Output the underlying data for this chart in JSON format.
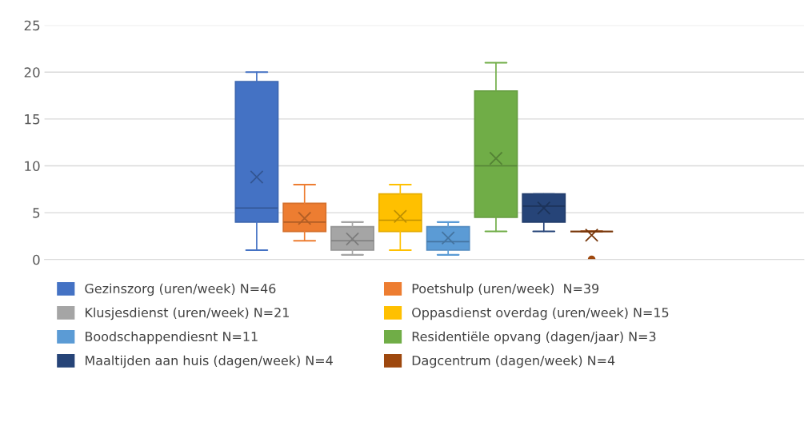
{
  "chart_data": {
    "type": "box",
    "categories": [
      null
    ],
    "ylim": [
      0,
      25
    ],
    "yticks": [
      0,
      5,
      10,
      15,
      20,
      25
    ],
    "grid": "y",
    "legend": "bottom",
    "series": [
      {
        "name": "Gezinszorg (uren/week) N=46",
        "color": "#4472c4",
        "boxes": [
          {
            "low": 1,
            "q1": 4,
            "median": 5.5,
            "q3": 19,
            "high": 20,
            "mean": 8.8
          }
        ]
      },
      {
        "name": "Poetshulp (uren/week)  N=39",
        "color": "#ed7d31",
        "boxes": [
          {
            "low": 2,
            "q1": 3,
            "median": 4,
            "q3": 6,
            "high": 8,
            "mean": 4.4
          }
        ]
      },
      {
        "name": "Klusjesdienst (uren/week) N=21",
        "color": "#a5a5a5",
        "boxes": [
          {
            "low": 0.5,
            "q1": 1,
            "median": 2,
            "q3": 3.5,
            "high": 4,
            "mean": 2.2
          }
        ]
      },
      {
        "name": "Oppasdienst overdag (uren/week) N=15",
        "color": "#ffc000",
        "boxes": [
          {
            "low": 1,
            "q1": 3,
            "median": 4.2,
            "q3": 7,
            "high": 8,
            "mean": 4.6
          }
        ]
      },
      {
        "name": "Boodschappendiesnt N=11",
        "color": "#5b9bd5",
        "boxes": [
          {
            "low": 0.5,
            "q1": 1,
            "median": 1.9,
            "q3": 3.5,
            "high": 4,
            "mean": 2.3
          }
        ]
      },
      {
        "name": "Residentiële opvang (dagen/jaar) N=3",
        "color": "#70ad47",
        "boxes": [
          {
            "low": 3,
            "q1": 4.5,
            "median": 10,
            "q3": 18,
            "high": 21,
            "mean": 10.8
          }
        ]
      },
      {
        "name": "Maaltijden aan huis (dagen/week) N=4",
        "color": "#264478",
        "boxes": [
          {
            "low": 3,
            "q1": 4,
            "median": 5.7,
            "q3": 7,
            "high": 7,
            "mean": 5.5
          }
        ]
      },
      {
        "name": "Dagcentrum (dagen/week) N=4",
        "color": "#9e480e",
        "boxes": [
          {
            "low": 3,
            "q1": 3,
            "median": 3,
            "q3": 3,
            "high": 3,
            "mean": 2.6,
            "outliers": [
              0
            ]
          }
        ]
      }
    ]
  }
}
